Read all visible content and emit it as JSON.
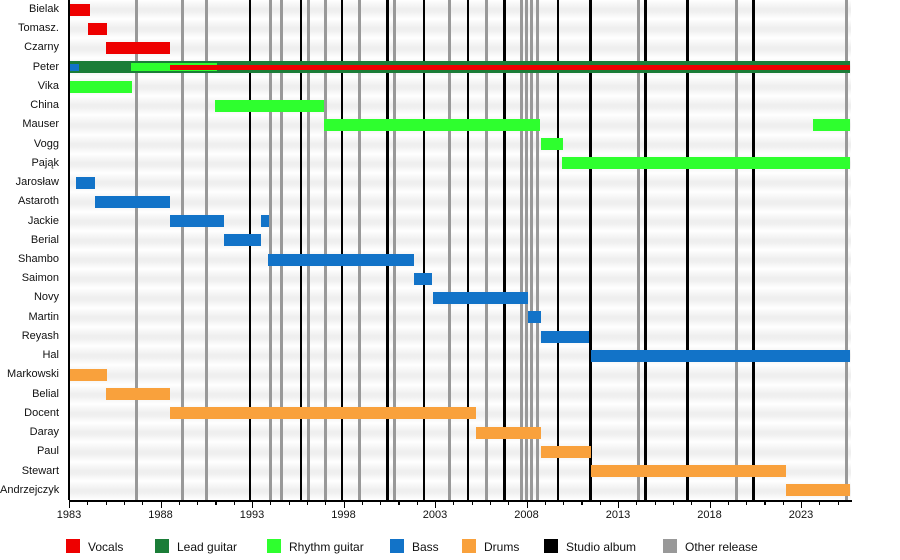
{
  "chart_data": {
    "type": "timeline",
    "description": "Band members tenure timeline (Gantt-style) with vertical release markers",
    "x_axis": {
      "min": 1983,
      "max": 2025.7,
      "major_ticks": [
        1983,
        1988,
        1993,
        1998,
        2003,
        2008,
        2013,
        2018,
        2023
      ],
      "minor_tick_interval": 1
    },
    "legend": [
      {
        "label": "Vocals",
        "color": "#ee0000",
        "role": "vocals"
      },
      {
        "label": "Lead guitar",
        "color": "#1b7d38",
        "role": "lead"
      },
      {
        "label": "Rhythm guitar",
        "color": "#2eff2e",
        "role": "rhythm"
      },
      {
        "label": "Bass",
        "color": "#1273c8",
        "role": "bass"
      },
      {
        "label": "Drums",
        "color": "#f9a13c",
        "role": "drums"
      },
      {
        "label": "Studio album",
        "color": "#000000",
        "role": "studio_album"
      },
      {
        "label": "Other release",
        "color": "#999999",
        "role": "other_release"
      }
    ],
    "members": [
      {
        "name": "Bielak",
        "bars": [
          {
            "role": "vocals",
            "start": 1983.0,
            "end": 1984.15
          }
        ]
      },
      {
        "name": "Tomasz.",
        "bars": [
          {
            "role": "vocals",
            "start": 1984.05,
            "end": 1985.05
          }
        ]
      },
      {
        "name": "Czarny",
        "bars": [
          {
            "role": "vocals",
            "start": 1985.0,
            "end": 1988.5
          }
        ]
      },
      {
        "name": "Peter",
        "bars": [
          {
            "role": "lead",
            "start": 1983.0,
            "end": 2025.7,
            "band": "full"
          },
          {
            "role": "rhythm",
            "start": 1986.4,
            "end": 1991.1,
            "band": "mid"
          },
          {
            "role": "vocals",
            "start": 1988.5,
            "end": 2025.7,
            "band": "thin"
          },
          {
            "role": "bass",
            "start": 1983.0,
            "end": 1983.55,
            "band": "small"
          }
        ]
      },
      {
        "name": "Vika",
        "bars": [
          {
            "role": "rhythm",
            "start": 1983.0,
            "end": 1986.45
          }
        ]
      },
      {
        "name": "China",
        "bars": [
          {
            "role": "rhythm",
            "start": 1991.0,
            "end": 1996.95
          }
        ]
      },
      {
        "name": "Mauser",
        "bars": [
          {
            "role": "rhythm",
            "start": 1996.95,
            "end": 2008.75
          },
          {
            "role": "rhythm",
            "start": 2023.65,
            "end": 2025.7
          }
        ]
      },
      {
        "name": "Vogg",
        "bars": [
          {
            "role": "rhythm",
            "start": 2008.8,
            "end": 2010.0
          }
        ]
      },
      {
        "name": "Pająk",
        "bars": [
          {
            "role": "rhythm",
            "start": 2009.95,
            "end": 2025.7
          }
        ]
      },
      {
        "name": "Jarosław",
        "bars": [
          {
            "role": "bass",
            "start": 1983.4,
            "end": 1984.4
          }
        ]
      },
      {
        "name": "Astaroth",
        "bars": [
          {
            "role": "bass",
            "start": 1984.4,
            "end": 1988.5
          }
        ]
      },
      {
        "name": "Jackie",
        "bars": [
          {
            "role": "bass",
            "start": 1988.5,
            "end": 1991.45
          },
          {
            "role": "bass",
            "start": 1993.5,
            "end": 1993.95
          }
        ]
      },
      {
        "name": "Berial",
        "bars": [
          {
            "role": "bass",
            "start": 1991.45,
            "end": 1993.5
          }
        ]
      },
      {
        "name": "Shambo",
        "bars": [
          {
            "role": "bass",
            "start": 1993.9,
            "end": 2001.85
          }
        ]
      },
      {
        "name": "Saimon",
        "bars": [
          {
            "role": "bass",
            "start": 2001.85,
            "end": 2002.85
          }
        ]
      },
      {
        "name": "Novy",
        "bars": [
          {
            "role": "bass",
            "start": 2002.9,
            "end": 2008.1
          }
        ]
      },
      {
        "name": "Martin",
        "bars": [
          {
            "role": "bass",
            "start": 2008.1,
            "end": 2008.8
          }
        ]
      },
      {
        "name": "Reyash",
        "bars": [
          {
            "role": "bass",
            "start": 2008.8,
            "end": 2011.4
          }
        ]
      },
      {
        "name": "Hal",
        "bars": [
          {
            "role": "bass",
            "start": 2011.5,
            "end": 2025.7
          }
        ]
      },
      {
        "name": "Markowski",
        "bars": [
          {
            "role": "drums",
            "start": 1983.0,
            "end": 1985.05
          }
        ]
      },
      {
        "name": "Belial",
        "bars": [
          {
            "role": "drums",
            "start": 1985.0,
            "end": 1988.5
          }
        ]
      },
      {
        "name": "Docent",
        "bars": [
          {
            "role": "drums",
            "start": 1988.5,
            "end": 2005.25
          }
        ]
      },
      {
        "name": "Daray",
        "bars": [
          {
            "role": "drums",
            "start": 2005.25,
            "end": 2008.8
          }
        ]
      },
      {
        "name": "Paul",
        "bars": [
          {
            "role": "drums",
            "start": 2008.8,
            "end": 2011.5
          }
        ]
      },
      {
        "name": "Stewart",
        "bars": [
          {
            "role": "drums",
            "start": 2011.5,
            "end": 2022.2
          }
        ]
      },
      {
        "name": "Andrzejczyk",
        "bars": [
          {
            "role": "drums",
            "start": 2022.2,
            "end": 2025.7
          }
        ]
      }
    ],
    "releases": {
      "studio_albums": [
        1992.9,
        1995.7,
        1997.9,
        2000.4,
        2002.4,
        2004.8,
        2006.8,
        2009.7,
        2011.5,
        2014.5,
        2016.8,
        2020.4
      ],
      "other_releases": [
        1986.7,
        1989.2,
        1990.5,
        1994.0,
        1994.6,
        1996.1,
        1997.0,
        1998.9,
        2000.8,
        2003.8,
        2005.8,
        2007.7,
        2008.0,
        2008.3,
        2008.6,
        2014.1,
        2019.5,
        2025.5
      ]
    }
  }
}
